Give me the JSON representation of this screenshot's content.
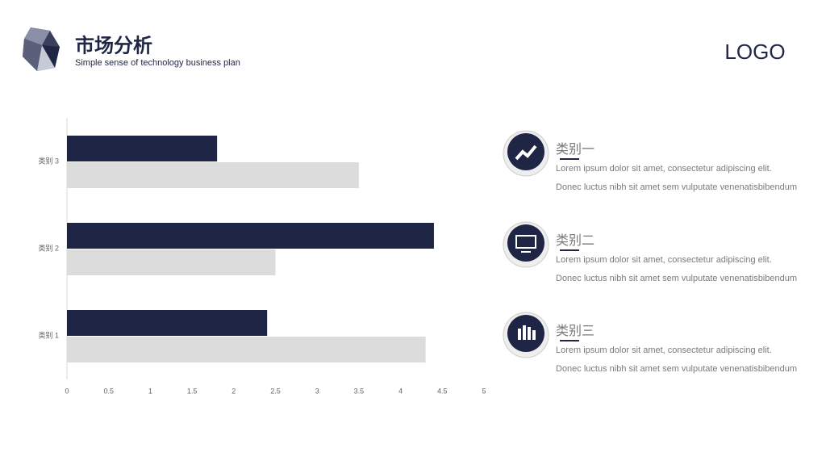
{
  "header": {
    "title": "市场分析",
    "subtitle": "Simple sense of technology business plan",
    "logo": "LOGO"
  },
  "chart_data": {
    "type": "hbar",
    "categories": [
      "类别 1",
      "类别 2",
      "类别 3"
    ],
    "series": [
      {
        "color": "#1f2544",
        "values": [
          2.4,
          4.4,
          1.8
        ]
      },
      {
        "color": "#dcdcdc",
        "values": [
          4.3,
          2.5,
          3.5
        ]
      }
    ],
    "xlim": [
      0,
      5
    ],
    "xticks": [
      0,
      0.5,
      1,
      1.5,
      2,
      2.5,
      3,
      3.5,
      4,
      4.5,
      5
    ]
  },
  "items": [
    {
      "title": "类别一",
      "text": "Lorem ipsum dolor sit amet, consectetur adipiscing elit. Donec luctus nibh sit amet sem vulputate venenatisbibendum"
    },
    {
      "title": "类别二",
      "text": "Lorem ipsum dolor sit amet, consectetur adipiscing elit. Donec luctus nibh sit amet sem vulputate venenatisbibendum"
    },
    {
      "title": "类别三",
      "text": "Lorem ipsum dolor sit amet, consectetur adipiscing elit. Donec luctus nibh sit amet sem vulputate venenatisbibendum"
    }
  ]
}
